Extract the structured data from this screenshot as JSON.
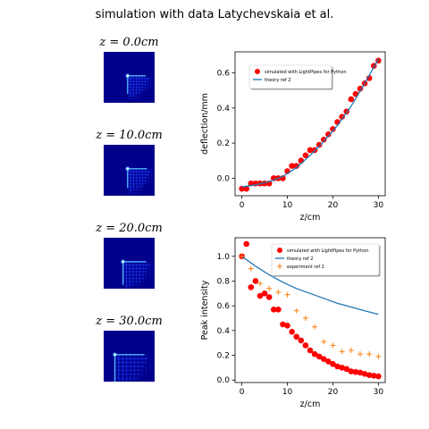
{
  "figure": {
    "title": "simulation with data Latychevskaia et al."
  },
  "panels": [
    {
      "label": "z = 0.0cm",
      "z_cm": 0.0,
      "spot": 0.47,
      "spread": 0.55
    },
    {
      "label": "z = 10.0cm",
      "z_cm": 10.0,
      "spot": 0.47,
      "spread": 0.6
    },
    {
      "label": "z = 20.0cm",
      "z_cm": 20.0,
      "spot": 0.38,
      "spread": 0.75
    },
    {
      "label": "z = 30.0cm",
      "z_cm": 30.0,
      "spot": 0.22,
      "spread": 1.0
    }
  ],
  "colors": {
    "simulated": "#ff0000",
    "theory": "#1f77b4",
    "experiment": "#ff7f0e",
    "panel_bg": "#00008b",
    "panel_bright": "#1e3cff"
  },
  "chart_data": [
    {
      "type": "line",
      "xlabel": "z/cm",
      "ylabel": "deflection/mm",
      "xlim": [
        -1.5,
        31.5
      ],
      "ylim": [
        -0.1,
        0.72
      ],
      "xticks": [
        0,
        10,
        20,
        30
      ],
      "yticks": [
        0.0,
        0.2,
        0.4,
        0.6
      ],
      "legend": "top-left",
      "series": [
        {
          "name": "simulated with LightPipes for Python",
          "marker": "circle",
          "x": [
            0,
            1,
            2,
            3,
            4,
            5,
            6,
            7,
            8,
            9,
            10,
            11,
            12,
            13,
            14,
            15,
            16,
            17,
            18,
            19,
            20,
            21,
            22,
            23,
            24,
            25,
            26,
            27,
            28,
            29,
            30
          ],
          "y": [
            -0.06,
            -0.06,
            -0.03,
            -0.03,
            -0.03,
            -0.03,
            -0.03,
            0.0,
            0.0,
            0.0,
            0.04,
            0.07,
            0.07,
            0.1,
            0.13,
            0.16,
            0.16,
            0.19,
            0.22,
            0.25,
            0.28,
            0.32,
            0.35,
            0.38,
            0.45,
            0.48,
            0.51,
            0.54,
            0.57,
            0.64,
            0.67
          ]
        },
        {
          "name": "theory ref 2",
          "marker": "line",
          "x": [
            0,
            3,
            6,
            9,
            12,
            15,
            18,
            21,
            24,
            27,
            30
          ],
          "y": [
            -0.05,
            -0.038,
            -0.02,
            0.01,
            0.06,
            0.13,
            0.21,
            0.3,
            0.41,
            0.54,
            0.68
          ]
        }
      ]
    },
    {
      "type": "line",
      "xlabel": "z/cm",
      "ylabel": "Peak intensity",
      "xlim": [
        -1.5,
        31.5
      ],
      "ylim": [
        -0.02,
        1.15
      ],
      "xticks": [
        0,
        10,
        20,
        30
      ],
      "yticks": [
        0.0,
        0.2,
        0.4,
        0.6,
        0.8,
        1.0
      ],
      "legend": "top-right",
      "series": [
        {
          "name": "simulated with LightPipes for Python",
          "marker": "circle",
          "x": [
            0,
            1,
            2,
            3,
            4,
            5,
            6,
            7,
            8,
            9,
            10,
            11,
            12,
            13,
            14,
            15,
            16,
            17,
            18,
            19,
            20,
            21,
            22,
            23,
            24,
            25,
            26,
            27,
            28,
            29,
            30
          ],
          "y": [
            1.0,
            1.1,
            0.75,
            0.8,
            0.68,
            0.7,
            0.67,
            0.57,
            0.57,
            0.45,
            0.44,
            0.39,
            0.35,
            0.32,
            0.28,
            0.24,
            0.21,
            0.19,
            0.17,
            0.15,
            0.13,
            0.11,
            0.1,
            0.09,
            0.07,
            0.065,
            0.06,
            0.05,
            0.04,
            0.035,
            0.03
          ]
        },
        {
          "name": "theory ref 2",
          "marker": "line",
          "x": [
            0,
            3,
            6,
            9,
            12,
            15,
            18,
            21,
            24,
            27,
            30
          ],
          "y": [
            1.0,
            0.92,
            0.85,
            0.79,
            0.74,
            0.7,
            0.66,
            0.62,
            0.59,
            0.56,
            0.53
          ]
        },
        {
          "name": "experiment ref 2",
          "marker": "plus",
          "x": [
            0,
            2,
            4,
            6,
            8,
            10,
            12,
            14,
            16,
            18,
            20,
            22,
            24,
            26,
            28,
            30
          ],
          "y": [
            1.0,
            0.9,
            0.78,
            0.74,
            0.71,
            0.69,
            0.56,
            0.5,
            0.43,
            0.31,
            0.28,
            0.23,
            0.24,
            0.21,
            0.21,
            0.19
          ]
        }
      ]
    }
  ]
}
